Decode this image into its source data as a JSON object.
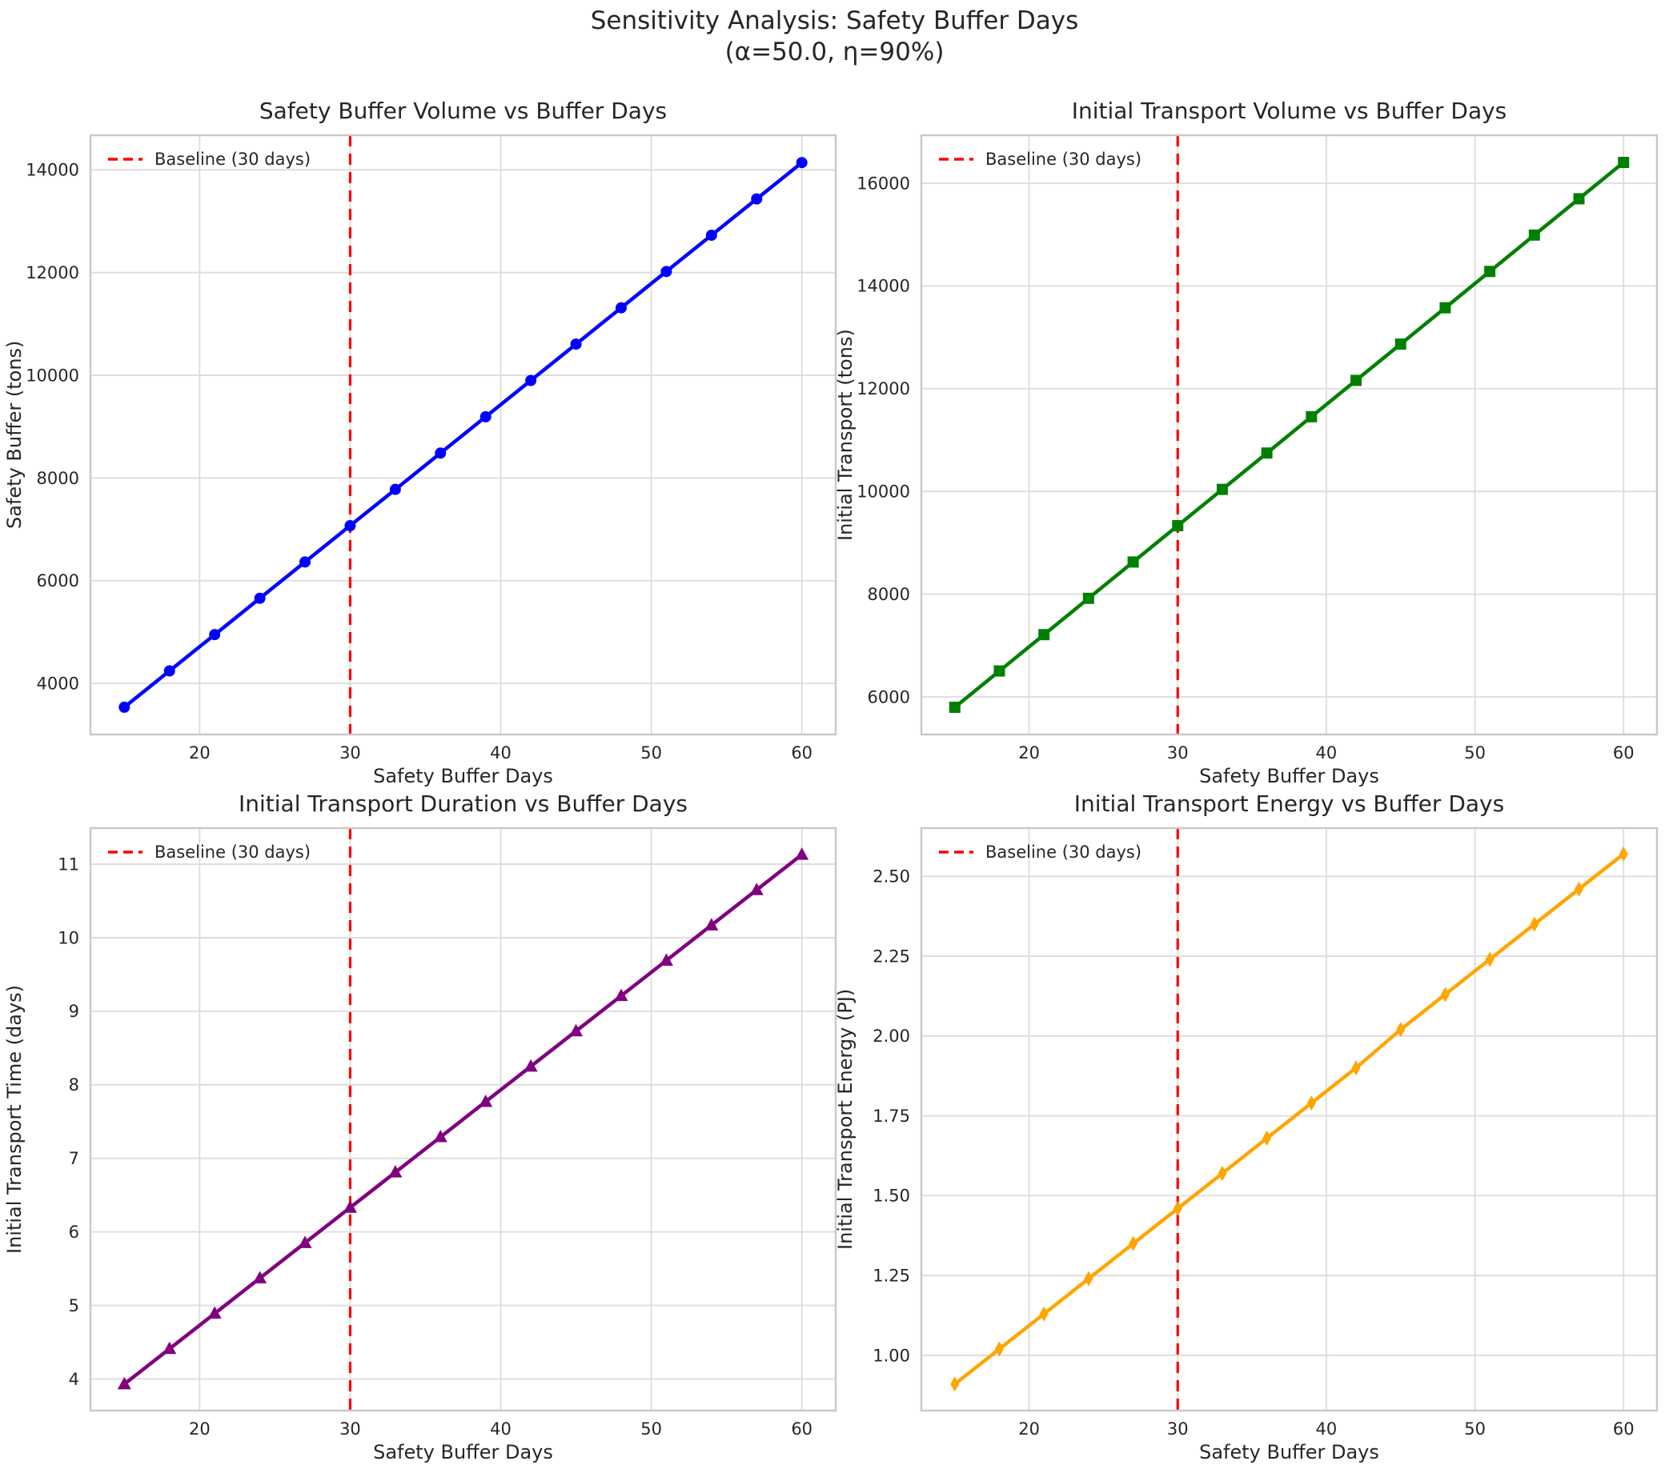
{
  "figure": {
    "title_line1": "Sensitivity Analysis: Safety Buffer Days",
    "title_line2": "(α=50.0, η=90%)"
  },
  "colors": {
    "grid": "#dcdcdc",
    "spine": "#c9c9c9",
    "text": "#262626",
    "baseline": "#ff0000",
    "series_blue": "#0000ff",
    "series_green": "#008000",
    "series_purple": "#800080",
    "series_orange": "#ffa500"
  },
  "chart_data": [
    {
      "type": "line",
      "title": "Safety Buffer Volume vs Buffer Days",
      "xlabel": "Safety Buffer Days",
      "ylabel": "Safety Buffer (tons)",
      "color": "#0000ff",
      "marker": "circle",
      "x": [
        15,
        18,
        21,
        24,
        27,
        30,
        33,
        36,
        39,
        42,
        45,
        48,
        51,
        54,
        57,
        60
      ],
      "values": [
        3536,
        4243,
        4950,
        5657,
        6364,
        7071,
        7778,
        8485,
        9192,
        9899,
        10607,
        11314,
        12021,
        12728,
        13435,
        14142
      ],
      "xlim": [
        12.75,
        62.25
      ],
      "ylim": [
        3005,
        14675
      ],
      "xticks": [
        20,
        30,
        40,
        50,
        60
      ],
      "xticklabels": [
        "20",
        "30",
        "40",
        "50",
        "60"
      ],
      "yticks": [
        4000,
        6000,
        8000,
        10000,
        12000,
        14000
      ],
      "yticklabels": [
        "4000",
        "6000",
        "8000",
        "10000",
        "12000",
        "14000"
      ],
      "grid": true,
      "legend_position": "upper-left",
      "baseline": {
        "x": 30,
        "label": "Baseline (30 days)"
      }
    },
    {
      "type": "line",
      "title": "Initial Transport Volume vs Buffer Days",
      "xlabel": "Safety Buffer Days",
      "ylabel": "Initial Transport (tons)",
      "color": "#008000",
      "marker": "square",
      "x": [
        15,
        18,
        21,
        24,
        27,
        30,
        33,
        36,
        39,
        42,
        45,
        48,
        51,
        54,
        57,
        60
      ],
      "values": [
        5798,
        6505,
        7212,
        7919,
        8626,
        9333,
        10040,
        10747,
        11454,
        12161,
        12868,
        13575,
        14282,
        14990,
        15697,
        16404
      ],
      "xlim": [
        12.75,
        62.25
      ],
      "ylim": [
        5268,
        16934
      ],
      "xticks": [
        20,
        30,
        40,
        50,
        60
      ],
      "xticklabels": [
        "20",
        "30",
        "40",
        "50",
        "60"
      ],
      "yticks": [
        6000,
        8000,
        10000,
        12000,
        14000,
        16000
      ],
      "yticklabels": [
        "6000",
        "8000",
        "10000",
        "12000",
        "14000",
        "16000"
      ],
      "grid": true,
      "legend_position": "upper-left",
      "baseline": {
        "x": 30,
        "label": "Baseline (30 days)"
      }
    },
    {
      "type": "line",
      "title": "Initial Transport Duration vs Buffer Days",
      "xlabel": "Safety Buffer Days",
      "ylabel": "Initial Transport Time (days)",
      "color": "#800080",
      "marker": "triangle-up",
      "x": [
        15,
        18,
        21,
        24,
        27,
        30,
        33,
        36,
        39,
        42,
        45,
        48,
        51,
        54,
        57,
        60
      ],
      "values": [
        3.93,
        4.41,
        4.89,
        5.37,
        5.85,
        6.33,
        6.81,
        7.29,
        7.77,
        8.25,
        8.73,
        9.21,
        9.69,
        10.17,
        10.65,
        11.13
      ],
      "xlim": [
        12.75,
        62.25
      ],
      "ylim": [
        3.57,
        11.49
      ],
      "xticks": [
        20,
        30,
        40,
        50,
        60
      ],
      "xticklabels": [
        "20",
        "30",
        "40",
        "50",
        "60"
      ],
      "yticks": [
        4,
        5,
        6,
        7,
        8,
        9,
        10,
        11
      ],
      "yticklabels": [
        "4",
        "5",
        "6",
        "7",
        "8",
        "9",
        "10",
        "11"
      ],
      "grid": true,
      "legend_position": "upper-left",
      "baseline": {
        "x": 30,
        "label": "Baseline (30 days)"
      }
    },
    {
      "type": "line",
      "title": "Initial Transport Energy vs Buffer Days",
      "xlabel": "Safety Buffer Days",
      "ylabel": "Initial Transport Energy (PJ)",
      "color": "#ffa500",
      "marker": "thin-diamond",
      "x": [
        15,
        18,
        21,
        24,
        27,
        30,
        33,
        36,
        39,
        42,
        45,
        48,
        51,
        54,
        57,
        60
      ],
      "values": [
        0.91,
        1.02,
        1.13,
        1.24,
        1.35,
        1.46,
        1.57,
        1.68,
        1.79,
        1.9,
        2.02,
        2.13,
        2.24,
        2.35,
        2.46,
        2.57
      ],
      "xlim": [
        12.75,
        62.25
      ],
      "ylim": [
        0.827,
        2.651
      ],
      "xticks": [
        20,
        30,
        40,
        50,
        60
      ],
      "xticklabels": [
        "20",
        "30",
        "40",
        "50",
        "60"
      ],
      "yticks": [
        1.0,
        1.25,
        1.5,
        1.75,
        2.0,
        2.25,
        2.5
      ],
      "yticklabels": [
        "1.00",
        "1.25",
        "1.50",
        "1.75",
        "2.00",
        "2.25",
        "2.50"
      ],
      "grid": true,
      "legend_position": "upper-left",
      "baseline": {
        "x": 30,
        "label": "Baseline (30 days)"
      }
    }
  ]
}
